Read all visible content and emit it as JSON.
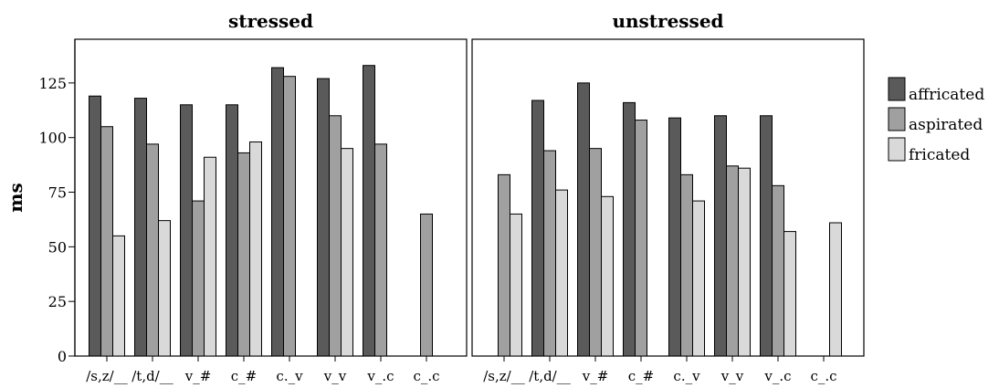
{
  "chart_data": {
    "type": "bar",
    "ylabel": "ms",
    "ylim": [
      0,
      145
    ],
    "yticks": [
      0,
      25,
      50,
      75,
      100,
      125
    ],
    "categories": [
      "/s,z/__",
      "/t,d/__",
      "v_#",
      "c_#",
      "c._v",
      "v_v",
      "v_.c",
      "c_.c"
    ],
    "legend": {
      "position": "right",
      "entries": [
        {
          "name": "affricated",
          "color": "#5a5a5a"
        },
        {
          "name": "aspirated",
          "color": "#a0a0a0"
        },
        {
          "name": "fricated",
          "color": "#d9d9d9"
        }
      ]
    },
    "panels": [
      {
        "title": "stressed",
        "series": [
          {
            "name": "affricated",
            "values": [
              119,
              118,
              115,
              115,
              132,
              127,
              133,
              null
            ]
          },
          {
            "name": "aspirated",
            "values": [
              105,
              97,
              71,
              93,
              128,
              110,
              97,
              65
            ]
          },
          {
            "name": "fricated",
            "values": [
              55,
              62,
              91,
              98,
              null,
              95,
              null,
              null
            ]
          }
        ]
      },
      {
        "title": "unstressed",
        "series": [
          {
            "name": "affricated",
            "values": [
              null,
              117,
              125,
              116,
              109,
              110,
              110,
              null
            ]
          },
          {
            "name": "aspirated",
            "values": [
              83,
              94,
              95,
              108,
              83,
              87,
              78,
              null
            ]
          },
          {
            "name": "fricated",
            "values": [
              65,
              76,
              73,
              null,
              71,
              86,
              57,
              61
            ]
          }
        ]
      }
    ]
  }
}
